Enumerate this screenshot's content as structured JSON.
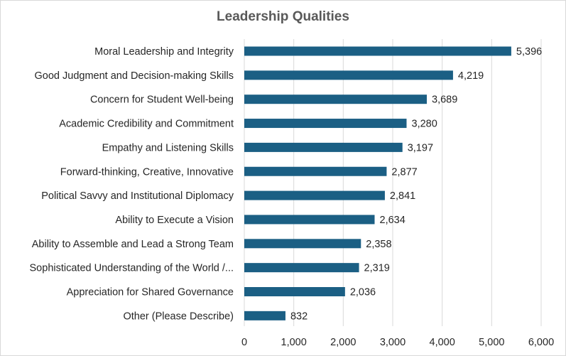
{
  "chart_data": {
    "type": "bar",
    "orientation": "horizontal",
    "title": "Leadership Qualities",
    "categories": [
      "Moral Leadership and Integrity",
      "Good Judgment and Decision-making Skills",
      "Concern for Student Well-being",
      "Academic Credibility and Commitment",
      "Empathy and Listening Skills",
      "Forward-thinking, Creative, Innovative",
      "Political Savvy and Institutional Diplomacy",
      "Ability to Execute a Vision",
      "Ability to Assemble and Lead a Strong Team",
      "Sophisticated Understanding of the World /...",
      "Appreciation for Shared Governance",
      "Other (Please Describe)"
    ],
    "values": [
      5396,
      4219,
      3689,
      3280,
      3197,
      2877,
      2841,
      2634,
      2358,
      2319,
      2036,
      832
    ],
    "value_labels": [
      "5,396",
      "4,219",
      "3,689",
      "3,280",
      "3,197",
      "2,877",
      "2,841",
      "2,634",
      "2,358",
      "2,319",
      "2,036",
      "832"
    ],
    "xlim": [
      0,
      6000
    ],
    "xticks": [
      0,
      1000,
      2000,
      3000,
      4000,
      5000,
      6000
    ],
    "xtick_labels": [
      "0",
      "1,000",
      "2,000",
      "3,000",
      "4,000",
      "5,000",
      "6,000"
    ],
    "grid": "vertical",
    "legend": "none",
    "bar_color": "#1b5f84",
    "grid_color": "#d9d9d9"
  }
}
